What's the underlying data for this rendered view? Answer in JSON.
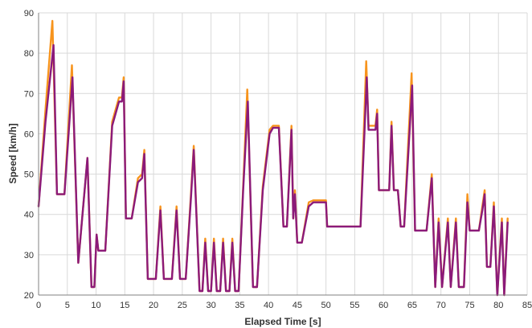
{
  "chart_data": {
    "type": "line",
    "title": "",
    "xlabel": "Elapsed Time [s]",
    "ylabel": "Speed [km/h]",
    "xlim": [
      0,
      85
    ],
    "ylim": [
      20,
      90
    ],
    "x_ticks": [
      "0",
      "5",
      "10",
      "15",
      "20",
      "25",
      "30",
      "35",
      "40",
      "45",
      "50",
      "55",
      "60",
      "65",
      "70",
      "75",
      "80",
      "85"
    ],
    "y_ticks": [
      "20",
      "30",
      "40",
      "50",
      "60",
      "70",
      "80",
      "90"
    ],
    "grid": true,
    "legend": "none",
    "series": [
      {
        "color": "#f7941d",
        "points": [
          [
            0,
            42
          ],
          [
            1.2,
            66
          ],
          [
            2.4,
            88
          ],
          [
            3.2,
            45
          ],
          [
            4.5,
            45
          ],
          [
            5.8,
            77
          ],
          [
            6.9,
            28
          ],
          [
            8.5,
            54
          ],
          [
            9.2,
            22
          ],
          [
            9.7,
            22
          ],
          [
            10.1,
            35
          ],
          [
            10.4,
            31
          ],
          [
            11.6,
            31
          ],
          [
            12.8,
            63
          ],
          [
            14.0,
            69
          ],
          [
            14.5,
            69
          ],
          [
            14.8,
            74
          ],
          [
            15.2,
            39
          ],
          [
            16.2,
            39
          ],
          [
            17.3,
            49
          ],
          [
            18.0,
            50
          ],
          [
            18.4,
            56
          ],
          [
            19.0,
            24
          ],
          [
            20.4,
            24
          ],
          [
            21.2,
            42
          ],
          [
            21.8,
            24
          ],
          [
            23.2,
            24
          ],
          [
            24.0,
            42
          ],
          [
            24.6,
            24
          ],
          [
            25.6,
            24
          ],
          [
            26.5,
            45
          ],
          [
            27.0,
            57
          ],
          [
            28.0,
            21
          ],
          [
            28.5,
            21
          ],
          [
            29.0,
            34
          ],
          [
            29.5,
            21
          ],
          [
            30.0,
            21
          ],
          [
            30.5,
            34
          ],
          [
            31.0,
            21
          ],
          [
            31.6,
            21
          ],
          [
            32.1,
            34
          ],
          [
            32.6,
            21
          ],
          [
            33.2,
            21
          ],
          [
            33.7,
            34
          ],
          [
            34.2,
            21
          ],
          [
            34.8,
            21
          ],
          [
            35.6,
            47
          ],
          [
            36.3,
            71
          ],
          [
            37.3,
            22
          ],
          [
            38.0,
            22
          ],
          [
            39.0,
            47
          ],
          [
            40.2,
            61
          ],
          [
            40.8,
            62
          ],
          [
            41.8,
            62
          ],
          [
            42.6,
            37
          ],
          [
            43.2,
            37
          ],
          [
            44.0,
            62
          ],
          [
            44.3,
            39
          ],
          [
            44.6,
            46
          ],
          [
            45.0,
            33
          ],
          [
            45.8,
            33
          ],
          [
            47.0,
            43
          ],
          [
            47.8,
            43.5
          ],
          [
            50.0,
            43.5
          ],
          [
            50.2,
            37
          ],
          [
            56.0,
            37
          ],
          [
            57.0,
            78
          ],
          [
            57.4,
            62
          ],
          [
            58.6,
            62
          ],
          [
            58.9,
            66
          ],
          [
            59.2,
            46
          ],
          [
            61.0,
            46
          ],
          [
            61.4,
            63
          ],
          [
            61.8,
            46
          ],
          [
            62.5,
            46
          ],
          [
            63.0,
            37
          ],
          [
            63.6,
            37
          ],
          [
            64.9,
            75
          ],
          [
            65.5,
            36
          ],
          [
            67.5,
            36
          ],
          [
            68.4,
            50
          ],
          [
            69.0,
            22
          ],
          [
            69.6,
            39
          ],
          [
            70.2,
            22
          ],
          [
            71.2,
            39
          ],
          [
            71.7,
            22
          ],
          [
            72.6,
            39
          ],
          [
            73.1,
            22
          ],
          [
            74.0,
            22
          ],
          [
            74.6,
            45
          ],
          [
            75.0,
            36
          ],
          [
            76.6,
            36
          ],
          [
            77.2,
            42
          ],
          [
            77.6,
            46
          ],
          [
            78.0,
            27
          ],
          [
            78.6,
            27
          ],
          [
            79.2,
            43
          ],
          [
            79.8,
            20
          ],
          [
            80.6,
            39
          ],
          [
            81.0,
            20
          ],
          [
            81.6,
            39
          ]
        ]
      },
      {
        "color": "#8b1a7a",
        "points": [
          [
            0,
            42
          ],
          [
            1.2,
            63
          ],
          [
            2.6,
            82
          ],
          [
            3.2,
            45
          ],
          [
            4.5,
            45
          ],
          [
            5.9,
            74
          ],
          [
            6.9,
            28
          ],
          [
            8.5,
            54
          ],
          [
            9.2,
            22
          ],
          [
            9.7,
            22
          ],
          [
            10.1,
            35
          ],
          [
            10.4,
            31
          ],
          [
            11.6,
            31
          ],
          [
            12.8,
            62
          ],
          [
            14.0,
            68
          ],
          [
            14.5,
            68
          ],
          [
            14.8,
            73
          ],
          [
            15.2,
            39
          ],
          [
            16.2,
            39
          ],
          [
            17.3,
            48
          ],
          [
            18.0,
            49
          ],
          [
            18.4,
            55
          ],
          [
            19.0,
            24
          ],
          [
            20.4,
            24
          ],
          [
            21.2,
            41
          ],
          [
            21.8,
            24
          ],
          [
            23.2,
            24
          ],
          [
            24.0,
            41
          ],
          [
            24.6,
            24
          ],
          [
            25.6,
            24
          ],
          [
            26.5,
            44
          ],
          [
            27.0,
            56
          ],
          [
            28.0,
            21
          ],
          [
            28.5,
            21
          ],
          [
            29.0,
            33
          ],
          [
            29.5,
            21
          ],
          [
            30.0,
            21
          ],
          [
            30.5,
            33
          ],
          [
            31.0,
            21
          ],
          [
            31.6,
            21
          ],
          [
            32.1,
            33
          ],
          [
            32.6,
            21
          ],
          [
            33.2,
            21
          ],
          [
            33.7,
            33
          ],
          [
            34.2,
            21
          ],
          [
            34.8,
            21
          ],
          [
            35.6,
            46
          ],
          [
            36.4,
            68
          ],
          [
            37.3,
            22
          ],
          [
            38.0,
            22
          ],
          [
            39.0,
            46
          ],
          [
            40.2,
            60
          ],
          [
            40.8,
            61.5
          ],
          [
            41.8,
            61.5
          ],
          [
            42.6,
            37
          ],
          [
            43.2,
            37
          ],
          [
            44.0,
            61
          ],
          [
            44.3,
            39
          ],
          [
            44.6,
            45
          ],
          [
            45.0,
            33
          ],
          [
            45.8,
            33
          ],
          [
            47.0,
            42
          ],
          [
            47.8,
            43
          ],
          [
            50.0,
            43
          ],
          [
            50.2,
            37
          ],
          [
            56.0,
            37
          ],
          [
            57.1,
            74
          ],
          [
            57.4,
            61
          ],
          [
            58.6,
            61
          ],
          [
            58.9,
            65
          ],
          [
            59.2,
            46
          ],
          [
            61.0,
            46
          ],
          [
            61.4,
            62
          ],
          [
            61.8,
            46
          ],
          [
            62.5,
            46
          ],
          [
            63.0,
            37
          ],
          [
            63.6,
            37
          ],
          [
            65.0,
            72
          ],
          [
            65.5,
            36
          ],
          [
            67.5,
            36
          ],
          [
            68.4,
            49
          ],
          [
            69.0,
            22
          ],
          [
            69.6,
            38
          ],
          [
            70.2,
            22
          ],
          [
            71.2,
            38
          ],
          [
            71.7,
            22
          ],
          [
            72.6,
            38
          ],
          [
            73.1,
            22
          ],
          [
            74.0,
            22
          ],
          [
            74.6,
            43
          ],
          [
            75.0,
            36
          ],
          [
            76.6,
            36
          ],
          [
            77.2,
            41
          ],
          [
            77.6,
            45
          ],
          [
            78.0,
            27
          ],
          [
            78.6,
            27
          ],
          [
            79.2,
            42
          ],
          [
            79.8,
            20
          ],
          [
            80.6,
            38
          ],
          [
            81.0,
            20
          ],
          [
            81.6,
            38
          ]
        ]
      }
    ]
  }
}
